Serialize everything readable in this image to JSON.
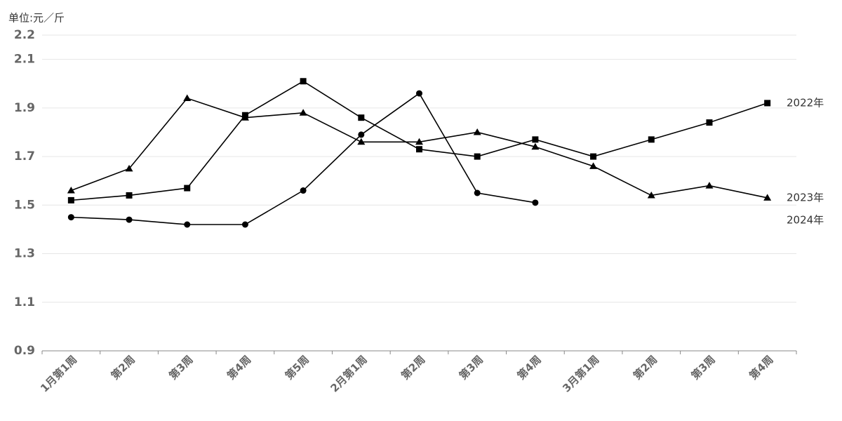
{
  "chart_data": {
    "type": "line",
    "y_label": "单位:元／斤",
    "categories": [
      "1月第1周",
      "第2周",
      "第3周",
      "第4周",
      "第5周",
      "2月第1周",
      "第2周",
      "第3周",
      "第4周",
      "3月第1周",
      "第2周",
      "第3周",
      "第4周"
    ],
    "series": [
      {
        "name": "2022年",
        "color": "#000000",
        "marker": "square",
        "values": [
          1.52,
          1.54,
          1.57,
          1.87,
          2.01,
          1.86,
          1.73,
          1.7,
          1.77,
          1.7,
          1.77,
          1.84,
          1.92
        ]
      },
      {
        "name": "2023年",
        "color": "#000000",
        "marker": "triangle",
        "values": [
          1.56,
          1.65,
          1.94,
          1.86,
          1.88,
          1.76,
          1.76,
          1.8,
          1.74,
          1.66,
          1.54,
          1.58,
          1.53
        ]
      },
      {
        "name": "2024年",
        "color": "#000000",
        "marker": "circle",
        "values": [
          1.45,
          1.44,
          1.42,
          1.42,
          1.56,
          1.79,
          1.96,
          1.55,
          1.51,
          null,
          null,
          null,
          null
        ]
      }
    ],
    "ylim": [
      0.9,
      2.2
    ],
    "yticks": [
      0.9,
      1.1,
      1.3,
      1.5,
      1.7,
      1.9,
      2.1,
      2.2
    ],
    "grid": true
  }
}
